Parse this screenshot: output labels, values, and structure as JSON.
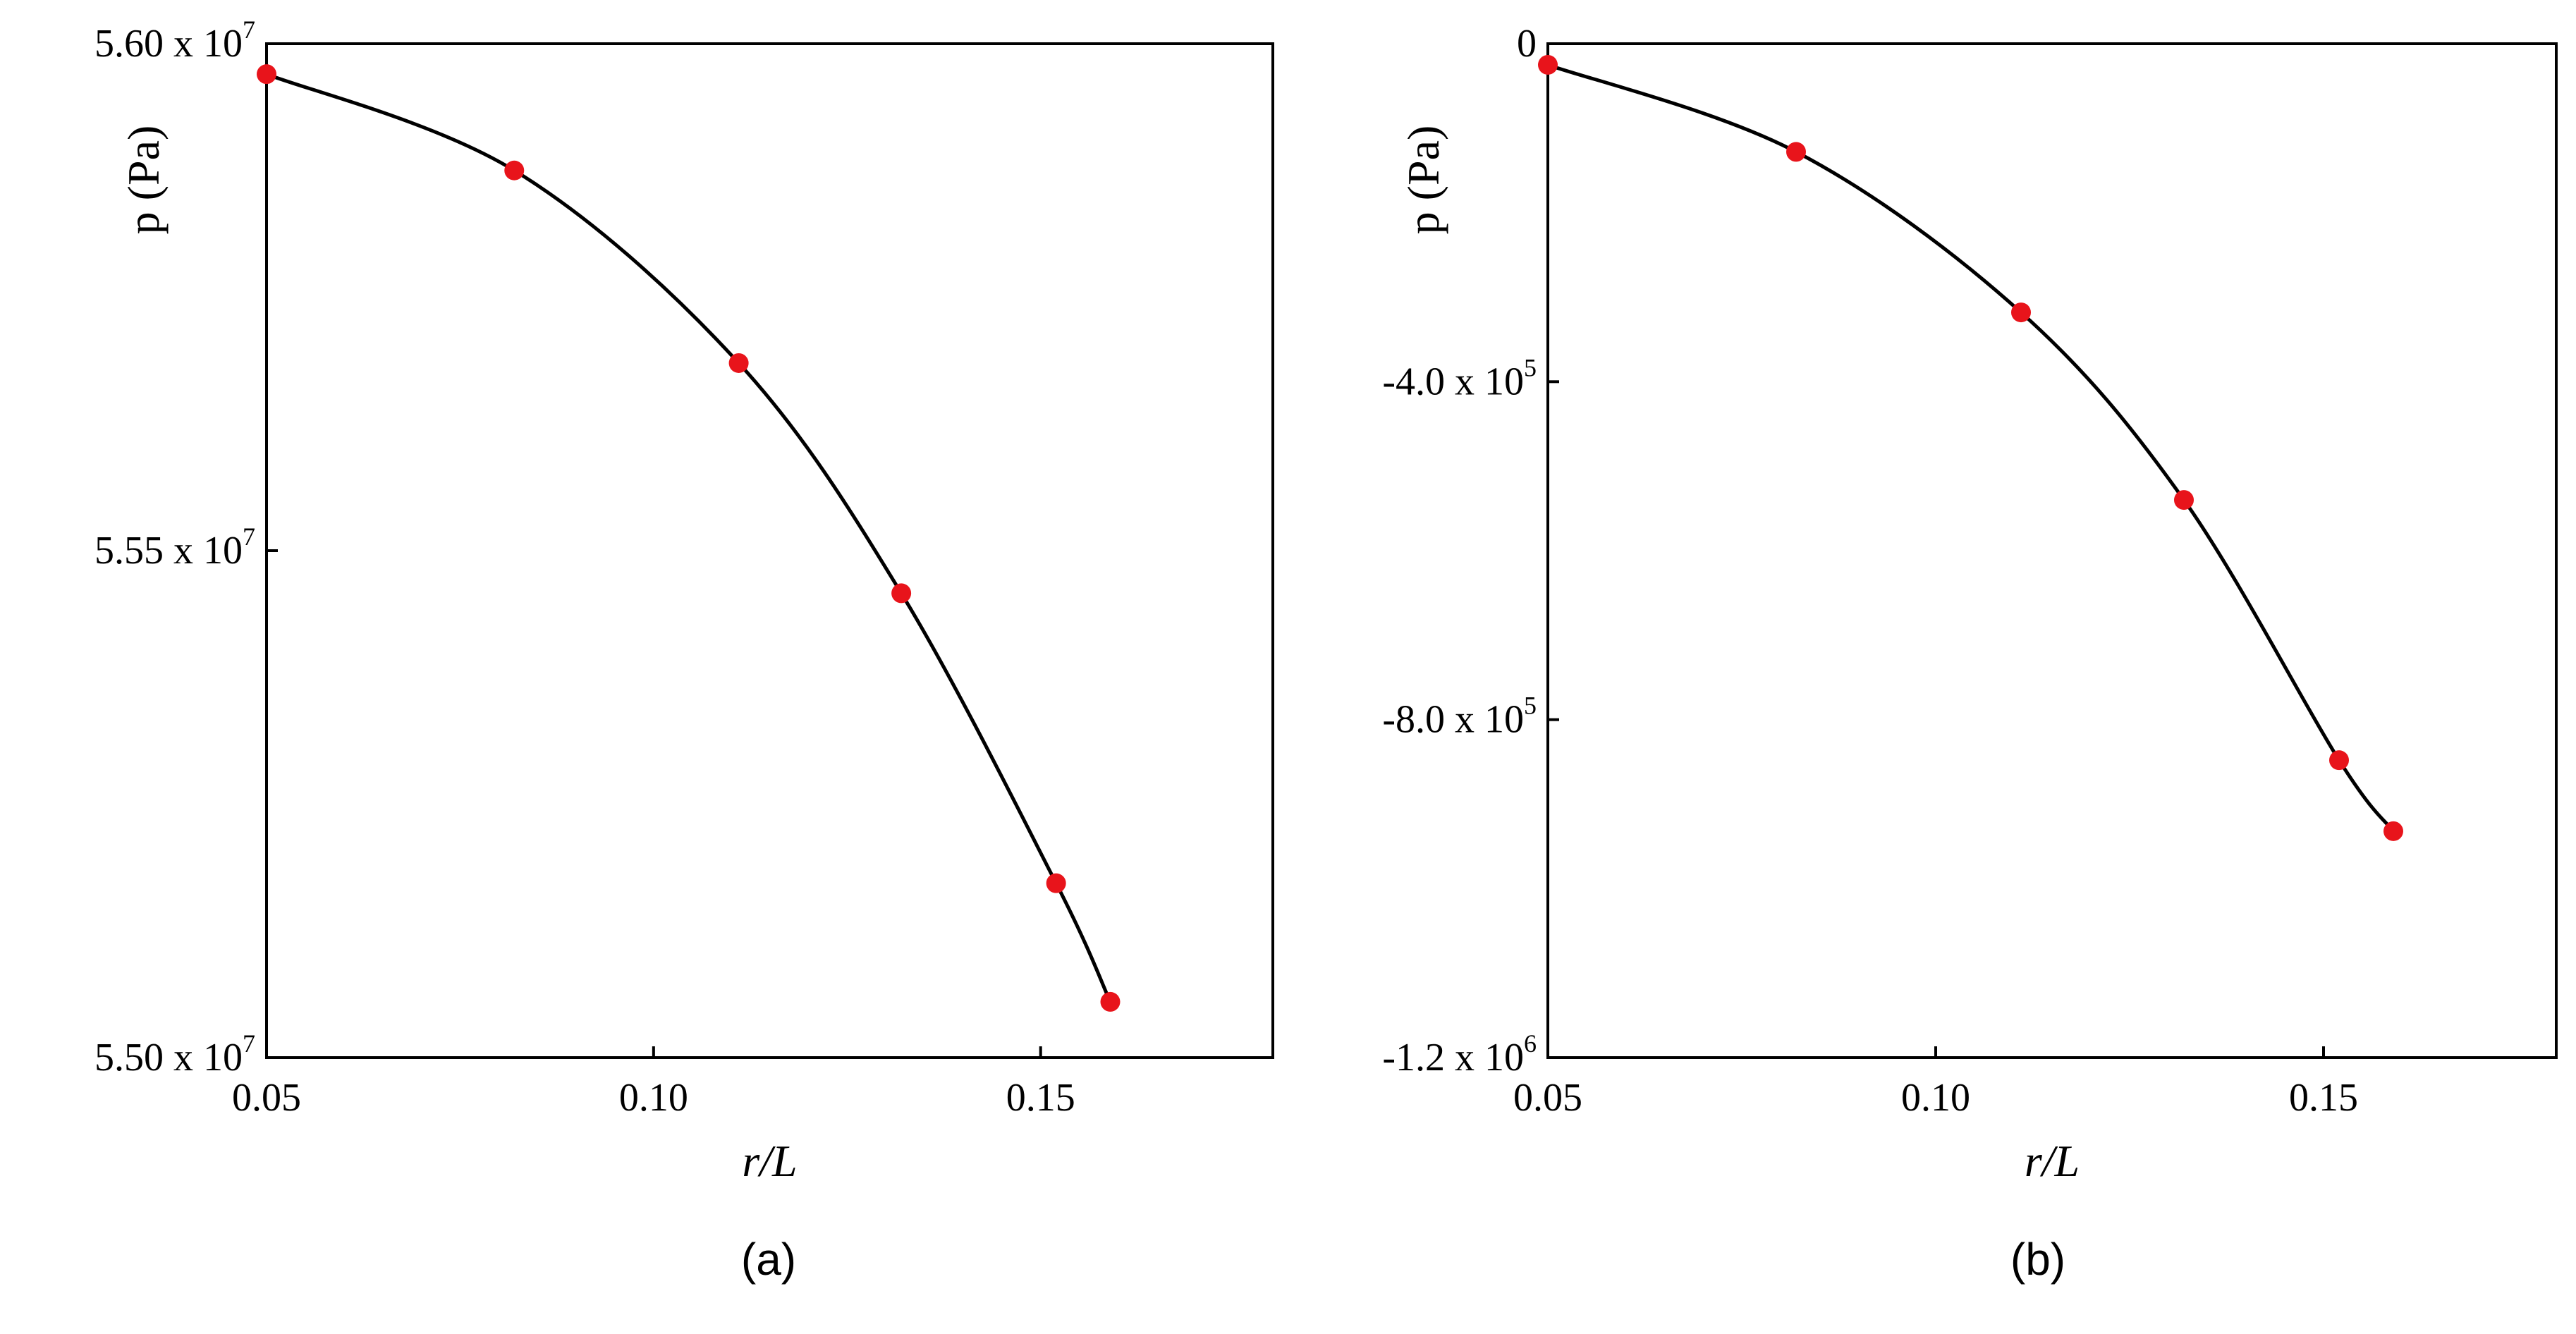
{
  "chart_data": [
    {
      "type": "line",
      "panel_label": "(a)",
      "xlabel": "r/L",
      "ylabel": "p (Pa)",
      "xlim": [
        0.05,
        0.18
      ],
      "ylim": [
        55000000,
        56000000
      ],
      "xticks": [
        {
          "value": 0.05,
          "label": "0.05"
        },
        {
          "value": 0.1,
          "label": "0.10"
        },
        {
          "value": 0.15,
          "label": "0.15"
        }
      ],
      "yticks": [
        {
          "value": 56000000,
          "mantissa": "5.60 x 10",
          "exponent": "7"
        },
        {
          "value": 55500000,
          "mantissa": "5.55 x 10",
          "exponent": "7"
        },
        {
          "value": 55000000,
          "mantissa": "5.50 x 10",
          "exponent": "7"
        }
      ],
      "points": [
        {
          "x": 0.05,
          "y": 55970000
        },
        {
          "x": 0.082,
          "y": 55875000
        },
        {
          "x": 0.111,
          "y": 55685000
        },
        {
          "x": 0.132,
          "y": 55458000
        },
        {
          "x": 0.152,
          "y": 55172000
        },
        {
          "x": 0.159,
          "y": 55055000
        }
      ],
      "marker_color": "#e8141b",
      "line_color": "#000000"
    },
    {
      "type": "line",
      "panel_label": "(b)",
      "xlabel": "r/L",
      "ylabel": "p (Pa)",
      "xlim": [
        0.05,
        0.18
      ],
      "ylim": [
        -1200000,
        0
      ],
      "xticks": [
        {
          "value": 0.05,
          "label": "0.05"
        },
        {
          "value": 0.1,
          "label": "0.10"
        },
        {
          "value": 0.15,
          "label": "0.15"
        }
      ],
      "yticks": [
        {
          "value": 0,
          "mantissa": "0",
          "exponent": ""
        },
        {
          "value": -400000,
          "mantissa": "-4.0 x 10",
          "exponent": "5"
        },
        {
          "value": -800000,
          "mantissa": "-8.0 x 10",
          "exponent": "5"
        },
        {
          "value": -1200000,
          "mantissa": "-1.2 x 10",
          "exponent": "6"
        }
      ],
      "points": [
        {
          "x": 0.05,
          "y": -25000
        },
        {
          "x": 0.082,
          "y": -128000
        },
        {
          "x": 0.111,
          "y": -318000
        },
        {
          "x": 0.132,
          "y": -540000
        },
        {
          "x": 0.152,
          "y": -848000
        },
        {
          "x": 0.159,
          "y": -932000
        }
      ],
      "marker_color": "#e8141b",
      "line_color": "#000000"
    }
  ]
}
